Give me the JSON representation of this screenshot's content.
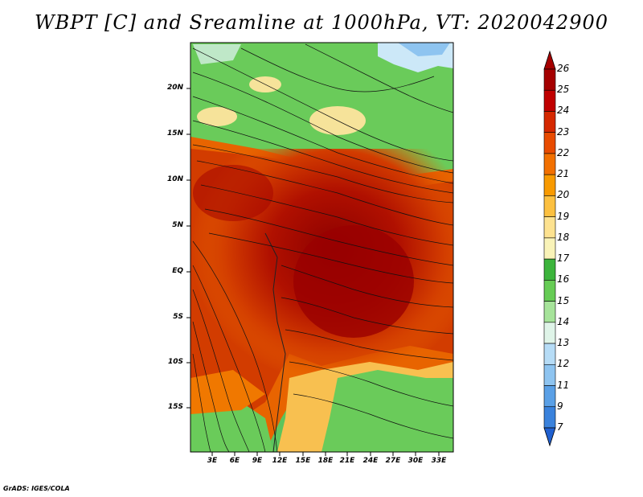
{
  "title": "WBPT [C] and Sreamline at 1000hPa, VT: 2020042900",
  "credit": "GrADS: IGES/COLA",
  "map": {
    "lat_labels": [
      "20N",
      "15N",
      "10N",
      "5N",
      "EQ",
      "5S",
      "10S",
      "15S"
    ],
    "lon_labels": [
      "3E",
      "6E",
      "9E",
      "12E",
      "15E",
      "18E",
      "21E",
      "24E",
      "27E",
      "30E",
      "33E"
    ]
  },
  "colorbar": {
    "labels": [
      "26",
      "25",
      "24",
      "23",
      "22",
      "21",
      "20",
      "19",
      "18",
      "17",
      "16",
      "15",
      "14",
      "13",
      "12",
      "11",
      "9",
      "7"
    ],
    "colors": [
      "#a50000",
      "#c00000",
      "#d52800",
      "#e84b00",
      "#f27000",
      "#f89a00",
      "#fcc040",
      "#fde290",
      "#f9f3b8",
      "#3cb43c",
      "#66cc55",
      "#a6e39a",
      "#dff4e8",
      "#b6dcf6",
      "#8ec4f0",
      "#5aa0e6",
      "#3a82dc",
      "#2060d0"
    ]
  },
  "colors": {
    "hot_core": "#9a0000",
    "warm": "#d23c00",
    "mid": "#f08c00",
    "cool_green": "#50c050",
    "sea": "#cce8f8"
  }
}
